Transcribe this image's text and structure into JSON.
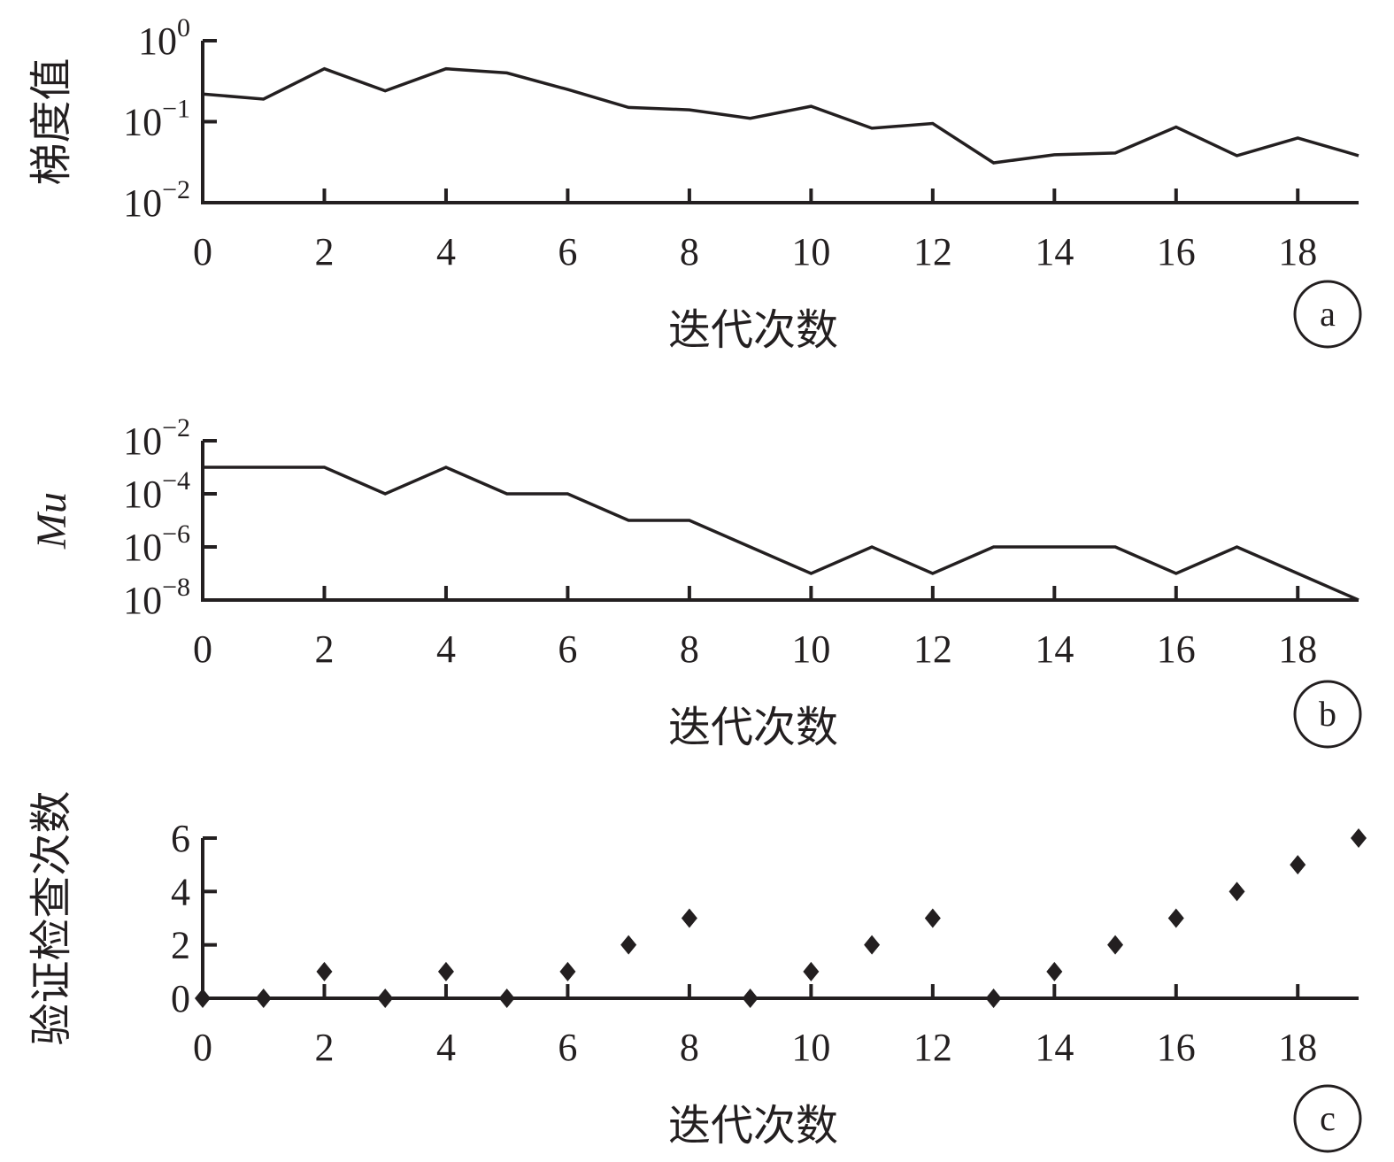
{
  "chart_data": [
    {
      "type": "line",
      "panel": "a",
      "xlabel": "迭代次数",
      "ylabel": "梯度值",
      "yscale": "log",
      "xlim": [
        0,
        19
      ],
      "ylim": [
        0.01,
        1
      ],
      "x_ticks": [
        0,
        2,
        4,
        6,
        8,
        10,
        12,
        14,
        16,
        18
      ],
      "y_ticks": [
        {
          "value": 1,
          "base": "10",
          "exp": "0"
        },
        {
          "value": 0.1,
          "base": "10",
          "exp": "−1"
        },
        {
          "value": 0.01,
          "base": "10",
          "exp": "−2"
        }
      ],
      "x": [
        0,
        1,
        2,
        3,
        4,
        5,
        6,
        7,
        8,
        9,
        10,
        11,
        12,
        13,
        14,
        15,
        16,
        17,
        18,
        19
      ],
      "y": [
        0.22,
        0.19,
        0.45,
        0.24,
        0.45,
        0.4,
        0.25,
        0.15,
        0.14,
        0.11,
        0.155,
        0.083,
        0.095,
        0.031,
        0.039,
        0.041,
        0.086,
        0.038,
        0.063,
        0.038
      ],
      "color": "#231f20"
    },
    {
      "type": "line",
      "panel": "b",
      "xlabel": "迭代次数",
      "ylabel": "Mu",
      "yscale": "log",
      "xlim": [
        0,
        19
      ],
      "ylim": [
        1e-08,
        0.01
      ],
      "x_ticks": [
        0,
        2,
        4,
        6,
        8,
        10,
        12,
        14,
        16,
        18
      ],
      "y_ticks": [
        {
          "value": 0.01,
          "base": "10",
          "exp": "−2"
        },
        {
          "value": 0.0001,
          "base": "10",
          "exp": "−4"
        },
        {
          "value": 1e-06,
          "base": "10",
          "exp": "−6"
        },
        {
          "value": 1e-08,
          "base": "10",
          "exp": "−8"
        }
      ],
      "x": [
        0,
        1,
        2,
        3,
        4,
        5,
        6,
        7,
        8,
        9,
        10,
        11,
        12,
        13,
        14,
        15,
        16,
        17,
        18,
        19
      ],
      "y": [
        0.001,
        0.001,
        0.001,
        0.0001,
        0.001,
        0.0001,
        0.0001,
        1e-05,
        1e-05,
        1e-06,
        1e-07,
        1e-06,
        1e-07,
        1e-06,
        1e-06,
        1e-06,
        1e-07,
        1e-06,
        1e-07,
        1e-08
      ],
      "color": "#231f20"
    },
    {
      "type": "scatter",
      "panel": "c",
      "xlabel": "迭代次数",
      "ylabel": "验证检查次数",
      "yscale": "linear",
      "xlim": [
        0,
        19
      ],
      "ylim": [
        0,
        6
      ],
      "x_ticks": [
        0,
        2,
        4,
        6,
        8,
        10,
        12,
        14,
        16,
        18
      ],
      "y_ticks": [
        0,
        2,
        4,
        6
      ],
      "x": [
        0,
        1,
        2,
        3,
        4,
        5,
        6,
        7,
        8,
        9,
        10,
        11,
        12,
        13,
        14,
        15,
        16,
        17,
        18,
        19
      ],
      "y": [
        0,
        0,
        1,
        0,
        1,
        0,
        1,
        2,
        3,
        0,
        1,
        2,
        3,
        0,
        1,
        2,
        3,
        4,
        5,
        6
      ],
      "marker": "diamond",
      "color": "#231f20"
    }
  ]
}
